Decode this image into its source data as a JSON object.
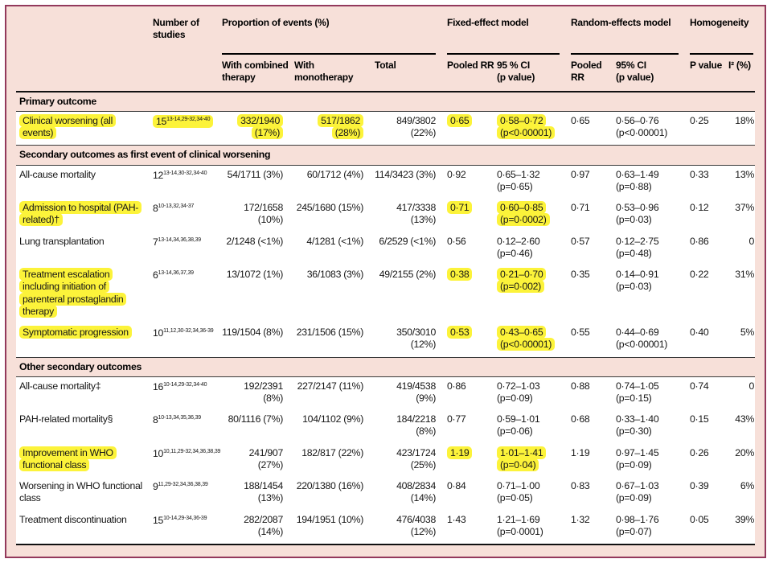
{
  "colors": {
    "highlight_yellow": "#fcf33a",
    "background_pink": "#f7e0d9",
    "border_maroon": "#93395c",
    "rule_black": "#111111"
  },
  "table": {
    "header": {
      "studies": "Number of studies",
      "proportion_group": "Proportion of events (%)",
      "combined": "With combined therapy",
      "mono": "With monotherapy",
      "total": "Total",
      "fixed_group": "Fixed-effect model",
      "fixed_rr": "Pooled RR",
      "fixed_ci": "95 % CI\n(p value)",
      "random_group": "Random-effects model",
      "random_rr": "Pooled\nRR",
      "random_ci": "95% CI\n(p value)",
      "homogeneity_group": "Homogeneity",
      "p": "P value",
      "i2": "I² (%)"
    },
    "sections": [
      {
        "band": "Primary outcome",
        "rows": [
          {
            "label": "Clinical worsening (all events)",
            "hl_label": true,
            "studies": "15",
            "refs": "13-14,29-32,34-40",
            "hl_studies": true,
            "combined": "332/1940 (17%)",
            "hl_combined": true,
            "mono": "517/1862 (28%)",
            "hl_mono": true,
            "total": "849/3802 (22%)",
            "fixed_rr": "0·65",
            "fixed_ci": "0·58–0·72",
            "fixed_p": "(p<0·00001)",
            "hl_fixed": true,
            "random_rr": "0·65",
            "random_ci": "0·56–0·76",
            "random_p": "(p<0·00001)",
            "p_value": "0·25",
            "i2": "18%"
          }
        ]
      },
      {
        "band": "Secondary outcomes as first event of clinical worsening",
        "rows": [
          {
            "label": "All-cause mortality",
            "hl_label": false,
            "studies": "12",
            "refs": "13-14,30-32,34-40",
            "hl_studies": false,
            "combined": "54/1711 (3%)",
            "hl_combined": false,
            "mono": "60/1712 (4%)",
            "hl_mono": false,
            "total": "114/3423 (3%)",
            "fixed_rr": "0·92",
            "fixed_ci": "0·65–1·32",
            "fixed_p": "(p=0·65)",
            "hl_fixed": false,
            "random_rr": "0·97",
            "random_ci": "0·63–1·49",
            "random_p": "(p=0·88)",
            "p_value": "0·33",
            "i2": "13%"
          },
          {
            "label": "Admission to hospital (PAH-related)†",
            "hl_label": true,
            "studies": "8",
            "refs": "10-13,32,34-37",
            "hl_studies": false,
            "combined": "172/1658 (10%)",
            "hl_combined": false,
            "mono": "245/1680 (15%)",
            "hl_mono": false,
            "total": "417/3338 (13%)",
            "fixed_rr": "0·71",
            "fixed_ci": "0·60–0·85",
            "fixed_p": "(p=0·0002)",
            "hl_fixed": true,
            "random_rr": "0·71",
            "random_ci": "0·53–0·96",
            "random_p": "(p=0·03)",
            "p_value": "0·12",
            "i2": "37%"
          },
          {
            "label": "Lung transplantation",
            "hl_label": false,
            "studies": "7",
            "refs": "13-14,34,36,38,39",
            "hl_studies": false,
            "combined": "2/1248 (<1%)",
            "hl_combined": false,
            "mono": "4/1281 (<1%)",
            "hl_mono": false,
            "total": "6/2529 (<1%)",
            "fixed_rr": "0·56",
            "fixed_ci": "0·12–2·60",
            "fixed_p": "(p=0·46)",
            "hl_fixed": false,
            "random_rr": "0·57",
            "random_ci": "0·12–2·75",
            "random_p": "(p=0·48)",
            "p_value": "0·86",
            "i2": "0"
          },
          {
            "label": "Treatment escalation including initiation of parenteral prostaglandin therapy",
            "hl_label": true,
            "studies": "6",
            "refs": "13-14,36,37,39",
            "hl_studies": false,
            "combined": "13/1072 (1%)",
            "hl_combined": false,
            "mono": "36/1083 (3%)",
            "hl_mono": false,
            "total": "49/2155 (2%)",
            "fixed_rr": "0·38",
            "fixed_ci": "0·21–0·70",
            "fixed_p": "(p=0·002)",
            "hl_fixed": true,
            "random_rr": "0·35",
            "random_ci": "0·14–0·91",
            "random_p": "(p=0·03)",
            "p_value": "0·22",
            "i2": "31%"
          },
          {
            "label": "Symptomatic progression",
            "hl_label": true,
            "studies": "10",
            "refs": "11,12,30-32,34,36-39",
            "hl_studies": false,
            "combined": "119/1504 (8%)",
            "hl_combined": false,
            "mono": "231/1506 (15%)",
            "hl_mono": false,
            "total": "350/3010 (12%)",
            "fixed_rr": "0·53",
            "fixed_ci": "0·43–0·65",
            "fixed_p": "(p<0·00001)",
            "hl_fixed": true,
            "random_rr": "0·55",
            "random_ci": "0·44–0·69",
            "random_p": "(p<0·00001)",
            "p_value": "0·40",
            "i2": "5%"
          }
        ]
      },
      {
        "band": "Other secondary outcomes",
        "rows": [
          {
            "label": "All-cause mortality‡",
            "hl_label": false,
            "studies": "16",
            "refs": "10-14,29-32,34-40",
            "hl_studies": false,
            "combined": "192/2391 (8%)",
            "hl_combined": false,
            "mono": "227/2147 (11%)",
            "hl_mono": false,
            "total": "419/4538 (9%)",
            "fixed_rr": "0·86",
            "fixed_ci": "0·72–1·03",
            "fixed_p": "(p=0·09)",
            "hl_fixed": false,
            "random_rr": "0·88",
            "random_ci": "0·74–1·05",
            "random_p": "(p=0·15)",
            "p_value": "0·74",
            "i2": "0"
          },
          {
            "label": "PAH-related mortality§",
            "hl_label": false,
            "studies": "8",
            "refs": "10-13,34,35,36,39",
            "hl_studies": false,
            "combined": "80/1116 (7%)",
            "hl_combined": false,
            "mono": "104/1102 (9%)",
            "hl_mono": false,
            "total": "184/2218 (8%)",
            "fixed_rr": "0·77",
            "fixed_ci": "0·59–1·01",
            "fixed_p": "(p=0·06)",
            "hl_fixed": false,
            "random_rr": "0·68",
            "random_ci": "0·33–1·40",
            "random_p": "(p=0·30)",
            "p_value": "0·15",
            "i2": "43%"
          },
          {
            "label": "Improvement in WHO functional class",
            "hl_label": true,
            "studies": "10",
            "refs": "10,11,29-32,34,36,38,39",
            "hl_studies": false,
            "combined": "241/907 (27%)",
            "hl_combined": false,
            "mono": "182/817 (22%)",
            "hl_mono": false,
            "total": "423/1724 (25%)",
            "fixed_rr": "1·19",
            "fixed_ci": "1·01–1·41",
            "fixed_p": "(p=0·04)",
            "hl_fixed": true,
            "random_rr": "1·19",
            "random_ci": "0·97–1·45",
            "random_p": "(p=0·09)",
            "p_value": "0·26",
            "i2": "20%"
          },
          {
            "label": "Worsening in WHO functional class",
            "hl_label": false,
            "studies": "9",
            "refs": "11,29-32,34,36,38,39",
            "hl_studies": false,
            "combined": "188/1454 (13%)",
            "hl_combined": false,
            "mono": "220/1380 (16%)",
            "hl_mono": false,
            "total": "408/2834 (14%)",
            "fixed_rr": "0·84",
            "fixed_ci": "0·71–1·00",
            "fixed_p": "(p=0·05)",
            "hl_fixed": false,
            "random_rr": "0·83",
            "random_ci": "0·67–1·03",
            "random_p": "(p=0·09)",
            "p_value": "0·39",
            "i2": "6%"
          },
          {
            "label": "Treatment discontinuation",
            "hl_label": false,
            "studies": "15",
            "refs": "10-14,29-34,36-39",
            "hl_studies": false,
            "combined": "282/2087 (14%)",
            "hl_combined": false,
            "mono": "194/1951 (10%)",
            "hl_mono": false,
            "total": "476/4038 (12%)",
            "fixed_rr": "1·43",
            "fixed_ci": "1·21–1·69",
            "fixed_p": "(p=0·0001)",
            "hl_fixed": false,
            "random_rr": "1·32",
            "random_ci": "0·98–1·76",
            "random_p": "(p=0·07)",
            "p_value": "0·05",
            "i2": "39%"
          }
        ]
      }
    ]
  }
}
